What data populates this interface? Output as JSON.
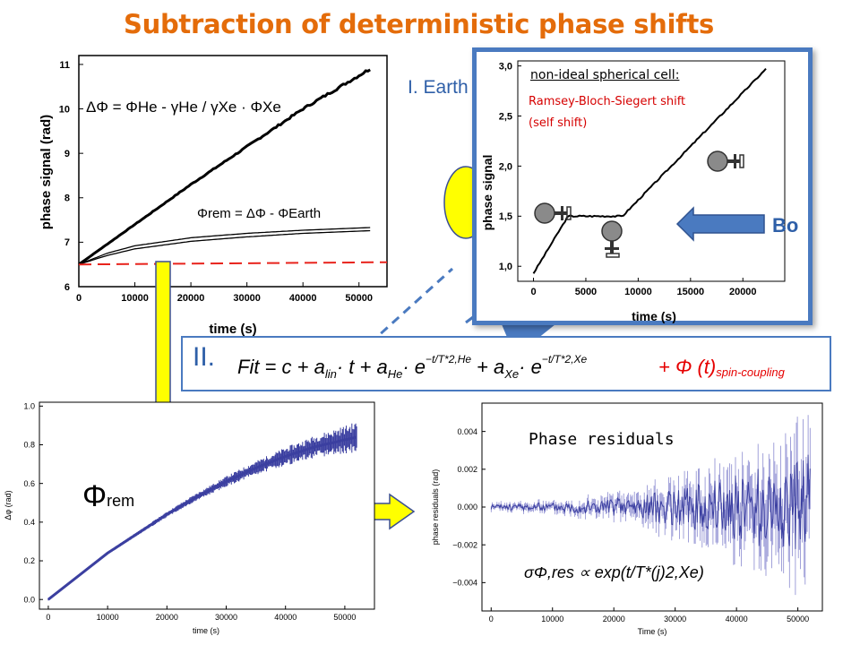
{
  "title": "Subtraction of deterministic phase shifts",
  "section_one_label": "I. Earth",
  "section_two_label": "II.",
  "fit_formula": {
    "prefix": "Fit = c + a",
    "lin_sub": "lin",
    "t_term": "· t + a",
    "he_sub": "He",
    "e1": "· e",
    "exp1": "−t/T*2,He",
    "plus_xe": "+ a",
    "xe_sub": "Xe",
    "e2": "· e",
    "exp2": "−t/T*2,Xe",
    "coupling": "+  Φ (t)",
    "coupling_sub": "spin-coupling"
  },
  "annotation_phi_rem": "Φrem",
  "inset": {
    "title": "non-ideal spherical cell:",
    "line1": "Ramsey-Bloch-Siegert  shift",
    "line2": "(self  shift)",
    "b_label": "Bo"
  },
  "residuals_label": "Phase residuals",
  "colors": {
    "title": "#e46c0a",
    "blue_frame": "#4a7ac0",
    "arrow_yellow": "#ffff00",
    "red_dash": "#e8231c",
    "data_blue": "#3b3fa0"
  },
  "chart_data": [
    {
      "type": "line",
      "xlabel": "time (s)",
      "ylabel": "phase signal (rad)",
      "xlim": [
        0,
        55000
      ],
      "ylim": [
        6,
        11.2
      ],
      "xticks": [
        0,
        10000,
        20000,
        30000,
        40000,
        50000
      ],
      "yticks": [
        6,
        7,
        8,
        9,
        10,
        11
      ],
      "annotations": [
        "ΔΦ = ΦHe - γHe / γXe · ΦXe",
        "Φrem = ΔΦ - ΦEarth"
      ],
      "series": [
        {
          "x": [
            0,
            10000,
            20000,
            30000,
            40000,
            52000
          ],
          "y": [
            6.5,
            7.4,
            8.3,
            9.15,
            10.0,
            10.9
          ]
        },
        {
          "x": [
            0,
            5000,
            10000,
            20000,
            30000,
            40000,
            52000
          ],
          "y": [
            6.5,
            6.75,
            6.92,
            7.1,
            7.2,
            7.27,
            7.33
          ]
        },
        {
          "x": [
            0,
            5000,
            10000,
            20000,
            30000,
            40000,
            52000
          ],
          "y": [
            6.5,
            6.7,
            6.85,
            7.02,
            7.12,
            7.2,
            7.26
          ]
        },
        {
          "x": [
            0,
            55000
          ],
          "y": [
            6.5,
            6.55
          ]
        }
      ]
    },
    {
      "type": "line",
      "xlabel": "time (s)",
      "ylabel": "Δφ (rad)",
      "xlim": [
        -1500,
        55000
      ],
      "ylim": [
        -0.05,
        1.02
      ],
      "xticks": [
        0,
        10000,
        20000,
        30000,
        40000,
        50000
      ],
      "yticks": [
        0.0,
        0.2,
        0.4,
        0.6,
        0.8,
        1.0
      ],
      "series": [
        {
          "x": [
            0,
            5000,
            10000,
            15000,
            20000,
            25000,
            30000,
            35000,
            40000,
            45000,
            52000
          ],
          "y": [
            0.0,
            0.12,
            0.24,
            0.34,
            0.44,
            0.53,
            0.61,
            0.68,
            0.74,
            0.79,
            0.84
          ]
        }
      ]
    },
    {
      "type": "scatter",
      "xlabel": "Time (s)",
      "ylabel": "phase residuals (rad)",
      "xlim": [
        -1500,
        54000
      ],
      "ylim": [
        -0.0055,
        0.0055
      ],
      "xticks": [
        0,
        10000,
        20000,
        30000,
        40000,
        50000
      ],
      "yticks": [
        -0.004,
        -0.002,
        0.0,
        0.002,
        0.004
      ],
      "ytick_labels": [
        "−0.004",
        "−0.002",
        "0.000",
        "0.002",
        "0.004"
      ],
      "envelope": {
        "x": [
          0,
          10000,
          20000,
          30000,
          40000,
          52000
        ],
        "amplitude": [
          0.0002,
          0.0003,
          0.0006,
          0.0012,
          0.0022,
          0.0035
        ]
      },
      "annotation": "σΦ,res ∝ exp(t/T*(j)2,Xe)"
    },
    {
      "type": "line",
      "xlabel": "time (s)",
      "ylabel": "phase signal",
      "xlim": [
        -1500,
        24000
      ],
      "ylim": [
        0.85,
        3.05
      ],
      "xticks": [
        0,
        5000,
        10000,
        15000,
        20000
      ],
      "yticks": [
        1.0,
        1.5,
        2.0,
        2.5,
        3.0
      ],
      "ytick_labels": [
        "1,0",
        "1,5",
        "2,0",
        "2,5",
        "3,0"
      ],
      "series": [
        {
          "x": [
            0,
            3300,
            8500,
            22300
          ],
          "y": [
            0.93,
            1.5,
            1.5,
            2.98
          ]
        }
      ]
    }
  ]
}
